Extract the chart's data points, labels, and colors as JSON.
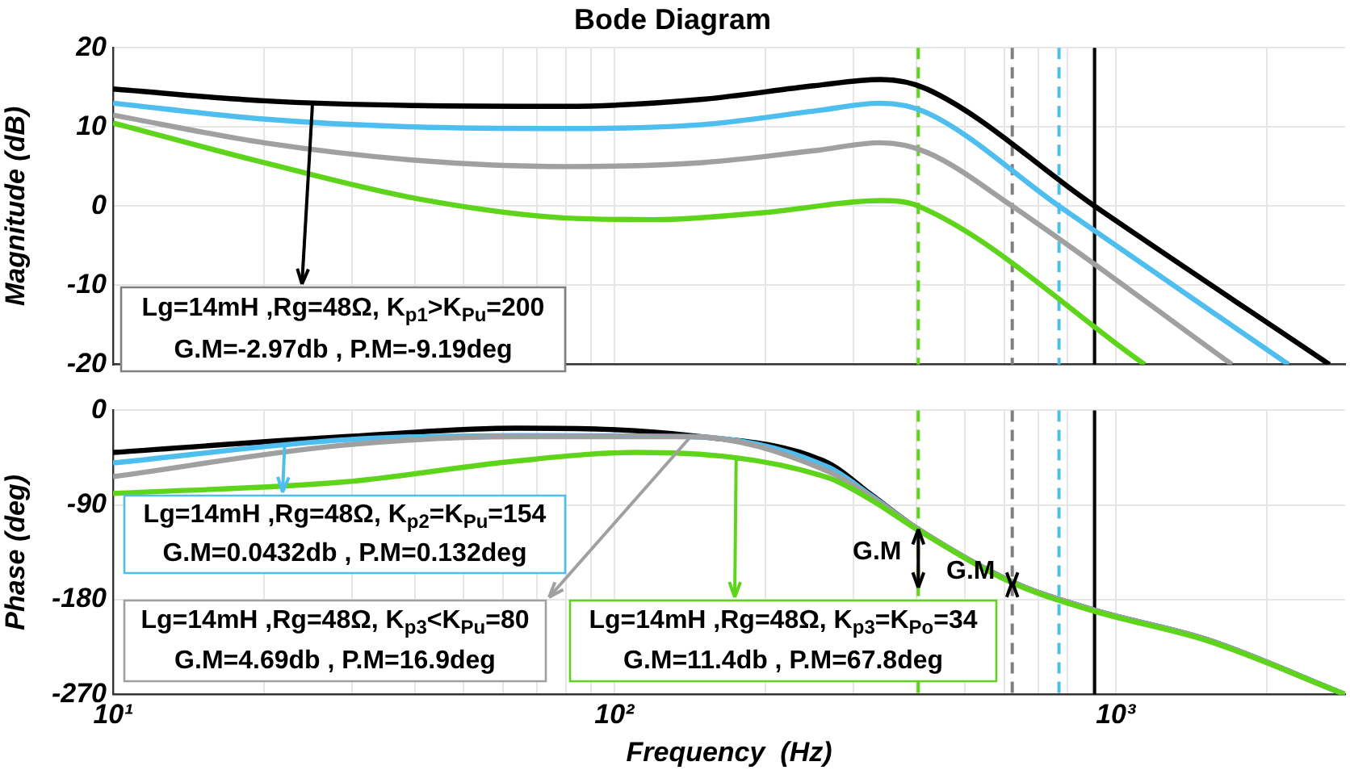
{
  "chart_data": [
    {
      "type": "line",
      "title": "Bode Diagram",
      "ylabel": "Magnitude (dB)",
      "log": "x",
      "grid": true,
      "tick_labels": "y",
      "xlim": [
        10,
        2870
      ],
      "xticks": [
        {
          "value": 10,
          "label": null
        },
        {
          "value": 20,
          "label": null
        },
        {
          "value": 30,
          "label": null
        },
        {
          "value": 40,
          "label": null
        },
        {
          "value": 50,
          "label": null
        },
        {
          "value": 60,
          "label": null
        },
        {
          "value": 70,
          "label": null
        },
        {
          "value": 80,
          "label": null
        },
        {
          "value": 90,
          "label": null
        },
        {
          "value": 100,
          "label": null
        },
        {
          "value": 200,
          "label": null
        },
        {
          "value": 300,
          "label": null
        },
        {
          "value": 400,
          "label": null
        },
        {
          "value": 500,
          "label": null
        },
        {
          "value": 600,
          "label": null
        },
        {
          "value": 700,
          "label": null
        },
        {
          "value": 800,
          "label": null
        },
        {
          "value": 900,
          "label": null
        },
        {
          "value": 1000,
          "label": null
        },
        {
          "value": 2000,
          "label": null
        }
      ],
      "ylim": [
        -20,
        20
      ],
      "yticks": [
        -20,
        -10,
        0,
        10,
        20
      ],
      "series": [
        {
          "color": "#000000",
          "x": [
            10,
            20,
            40,
            80,
            150,
            250,
            340,
            420,
            908,
            2670
          ],
          "values": [
            14.8,
            13.3,
            12.7,
            12.6,
            13.5,
            15.2,
            16,
            14.8,
            0,
            -20
          ]
        },
        {
          "color": "#4dbeee",
          "x": [
            10,
            20,
            40,
            80,
            150,
            250,
            340,
            420,
            771,
            2213
          ],
          "values": [
            13,
            11,
            10,
            9.8,
            10.3,
            12,
            13,
            11.8,
            0,
            -20
          ]
        },
        {
          "color": "#a0a0a0",
          "x": [
            10,
            20,
            40,
            80,
            150,
            250,
            340,
            420,
            622,
            1706
          ],
          "values": [
            11.5,
            8,
            5.8,
            5,
            5.5,
            7,
            8,
            6.8,
            0,
            -20
          ]
        },
        {
          "color": "#5ed41a",
          "x": [
            10,
            20,
            40,
            80,
            120,
            200,
            340,
            404,
            1143
          ],
          "values": [
            10.5,
            5.5,
            1,
            -1.5,
            -1.7,
            -0.8,
            0.7,
            0,
            -20
          ]
        }
      ],
      "ref_lines": [
        {
          "axis": "x",
          "value": 404,
          "color": "#5ed41a",
          "line_style": "dashed"
        },
        {
          "axis": "x",
          "value": 622,
          "color": "#808080",
          "line_style": "dashed"
        },
        {
          "axis": "x",
          "value": 771,
          "color": "#4dbeee",
          "line_style": "dashed"
        },
        {
          "axis": "x",
          "value": 908,
          "color": "#000000",
          "line_style": "solid"
        }
      ],
      "annotations": [
        {
          "text": "Lg=14mH ,Rg=48Ω, K$_{p1}$>K$_{Pu}$=200\nG.M=-2.97db , P.M=-9.19deg",
          "x": 25,
          "y": 13
        }
      ]
    },
    {
      "type": "line",
      "xlabel": "Frequency  (Hz)",
      "ylabel": "Phase (deg)",
      "log": "x",
      "grid": true,
      "xlim": [
        10,
        2870
      ],
      "xticks": [
        {
          "value": 10,
          "label": "10¹"
        },
        {
          "value": 20,
          "label": null
        },
        {
          "value": 30,
          "label": null
        },
        {
          "value": 40,
          "label": null
        },
        {
          "value": 50,
          "label": null
        },
        {
          "value": 60,
          "label": null
        },
        {
          "value": 70,
          "label": null
        },
        {
          "value": 80,
          "label": null
        },
        {
          "value": 90,
          "label": null
        },
        {
          "value": 100,
          "label": "10²"
        },
        {
          "value": 200,
          "label": null
        },
        {
          "value": 300,
          "label": null
        },
        {
          "value": 400,
          "label": null
        },
        {
          "value": 500,
          "label": null
        },
        {
          "value": 600,
          "label": null
        },
        {
          "value": 700,
          "label": null
        },
        {
          "value": 800,
          "label": null
        },
        {
          "value": 900,
          "label": null
        },
        {
          "value": 1000,
          "label": "10³"
        },
        {
          "value": 2000,
          "label": null
        }
      ],
      "ylim": [
        -270,
        0
      ],
      "yticks": [
        -270,
        -180,
        -90,
        0
      ],
      "series": [
        {
          "color": "#000000",
          "x": [
            10,
            29,
            64,
            142,
            267,
            325,
            404,
            622,
            908,
            1525,
            2870
          ],
          "values": [
            -40,
            -25,
            -17,
            -24,
            -50,
            -80,
            -113,
            -163,
            -190,
            -218,
            -270
          ]
        },
        {
          "color": "#4dbeee",
          "x": [
            10,
            29,
            64,
            142,
            267,
            325,
            404,
            622,
            908,
            1525,
            2870
          ],
          "values": [
            -50,
            -28,
            -24,
            -25,
            -54,
            -81,
            -113,
            -163,
            -190,
            -218,
            -270
          ]
        },
        {
          "color": "#a0a0a0",
          "x": [
            10,
            29,
            64,
            142,
            267,
            325,
            404,
            622,
            908,
            1525,
            2870
          ],
          "values": [
            -63,
            -33,
            -25,
            -25,
            -58,
            -82,
            -113,
            -163,
            -190,
            -218,
            -270
          ]
        },
        {
          "color": "#5ed41a",
          "x": [
            10,
            29,
            64,
            111,
            267,
            325,
            404,
            622,
            908,
            1525,
            2870
          ],
          "values": [
            -79,
            -68,
            -48,
            -40,
            -64,
            -85,
            -114,
            -164,
            -191,
            -219,
            -270
          ]
        }
      ],
      "ref_lines": [
        {
          "axis": "x",
          "value": 404,
          "color": "#5ed41a",
          "line_style": "dashed"
        },
        {
          "axis": "x",
          "value": 622,
          "color": "#808080",
          "line_style": "dashed"
        },
        {
          "axis": "x",
          "value": 771,
          "color": "#4dbeee",
          "line_style": "dashed"
        },
        {
          "axis": "x",
          "value": 908,
          "color": "#000000",
          "line_style": "solid"
        }
      ],
      "annotations": [
        {
          "text": "Lg=14mH ,Rg=48Ω, K$_{p2}$=K$_{Pu}$=154\nG.M=0.0432db , P.M=0.132deg",
          "x": 22,
          "y": -32
        },
        {
          "text": "Lg=14mH ,Rg=48Ω, K$_{p3}$<K$_{Pu}$=80\nG.M=4.69db , P.M=16.9deg",
          "x": 142,
          "y": -25
        },
        {
          "text": "Lg=14mH ,Rg=48Ω, K$_{p3}$=K$_{Po}$=34\nG.M=11.4db , P.M=67.8deg",
          "x": 175,
          "y": -45
        },
        {
          "text": "G.M",
          "x": 404,
          "y": -113
        },
        {
          "text": "G.M",
          "x": 622,
          "y": -163
        }
      ]
    }
  ]
}
